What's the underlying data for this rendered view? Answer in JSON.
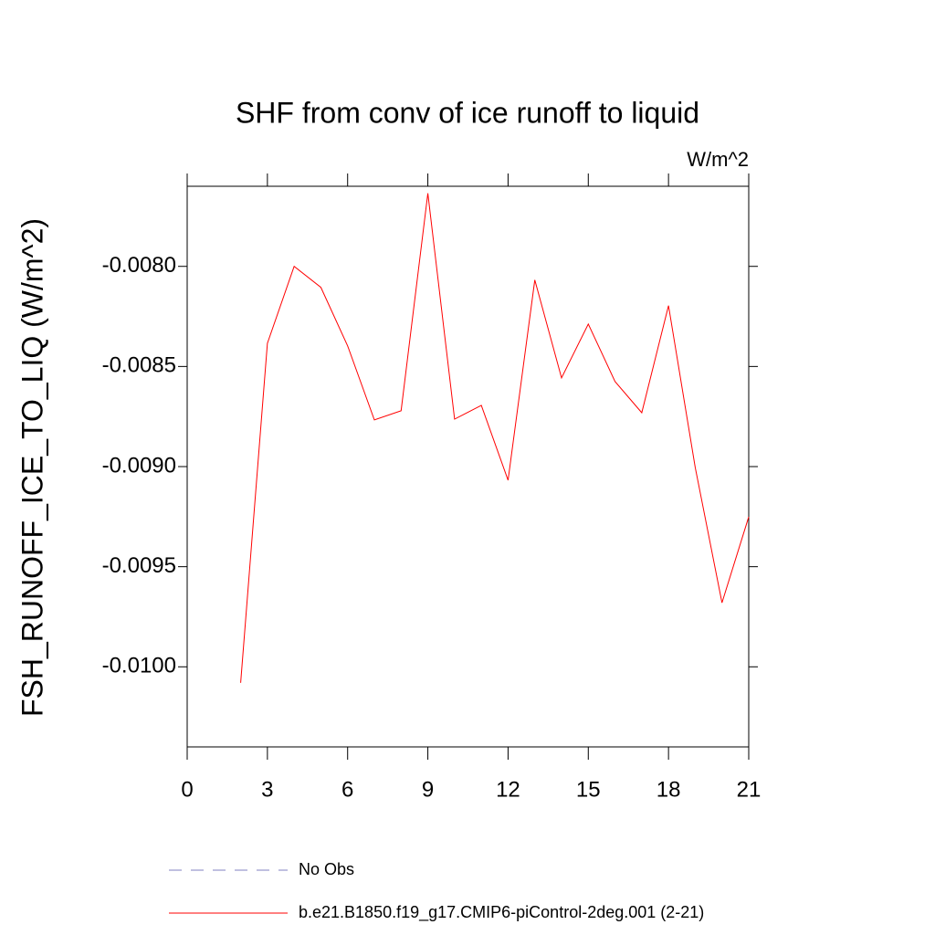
{
  "chart_data": {
    "type": "line",
    "title": "SHF from conv of ice runoff to liquid",
    "units": "W/m^2",
    "y_label": "FSH_RUNOFF_ICE_TO_LIQ  (W/m^2)",
    "x": [
      2,
      3,
      4,
      5,
      6,
      7,
      8,
      9,
      10,
      11,
      12,
      13,
      14,
      15,
      16,
      17,
      18,
      19,
      20,
      21
    ],
    "series": [
      {
        "name": "No Obs",
        "color": "#8080c0",
        "dashed": true,
        "values": [
          null,
          null,
          null,
          null,
          null,
          null,
          null,
          null,
          null,
          null,
          null,
          null,
          null,
          null,
          null,
          null,
          null,
          null,
          null,
          null
        ]
      },
      {
        "name": "b.e21.B1850.f19_g17.CMIP6-piControl-2deg.001 (2-21)",
        "color": "#ff0000",
        "dashed": false,
        "values": [
          -0.01008,
          -0.008384,
          -0.008,
          -0.008105,
          -0.008397,
          -0.008767,
          -0.008721,
          -0.007635,
          -0.008763,
          -0.008694,
          -0.009068,
          -0.008068,
          -0.008557,
          -0.008288,
          -0.008575,
          -0.008731,
          -0.008196,
          -0.009005,
          -0.00968,
          -0.009251
        ]
      }
    ],
    "xlim": [
      0,
      21
    ],
    "xticks": [
      0,
      3,
      6,
      9,
      12,
      15,
      18,
      21
    ],
    "ylim": [
      -0.0104,
      -0.0076
    ],
    "yticks": [
      {
        "value": -0.01,
        "label": "-0.0100"
      },
      {
        "value": -0.0095,
        "label": "-0.0095"
      },
      {
        "value": -0.009,
        "label": "-0.0090"
      },
      {
        "value": -0.0085,
        "label": "-0.0085"
      },
      {
        "value": -0.008,
        "label": "-0.0080"
      }
    ],
    "grid": false
  }
}
